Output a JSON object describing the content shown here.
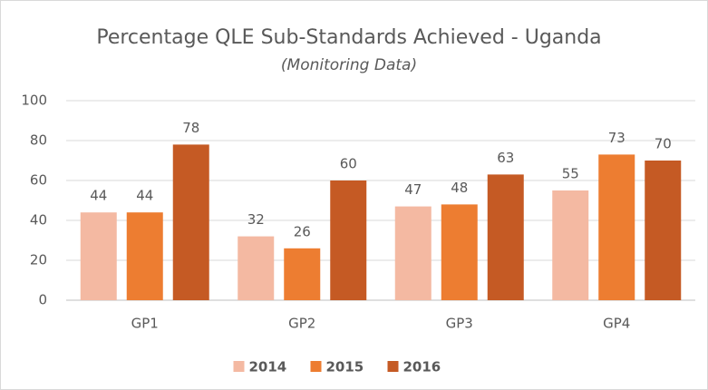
{
  "chart_data": {
    "type": "bar",
    "title": "Percentage QLE Sub-Standards Achieved - Uganda",
    "subtitle": "(Monitoring Data)",
    "categories": [
      "GP1",
      "GP2",
      "GP3",
      "GP4"
    ],
    "series": [
      {
        "name": "2014",
        "color": "#f4b9a2",
        "values": [
          44,
          32,
          47,
          55
        ]
      },
      {
        "name": "2015",
        "color": "#ed7d31",
        "values": [
          44,
          26,
          48,
          73
        ]
      },
      {
        "name": "2016",
        "color": "#c55a24",
        "values": [
          78,
          60,
          63,
          70
        ]
      }
    ],
    "ylim": [
      0,
      100
    ],
    "yticks": [
      0,
      20,
      40,
      60,
      80,
      100
    ],
    "grid": true,
    "legend": "bottom"
  }
}
